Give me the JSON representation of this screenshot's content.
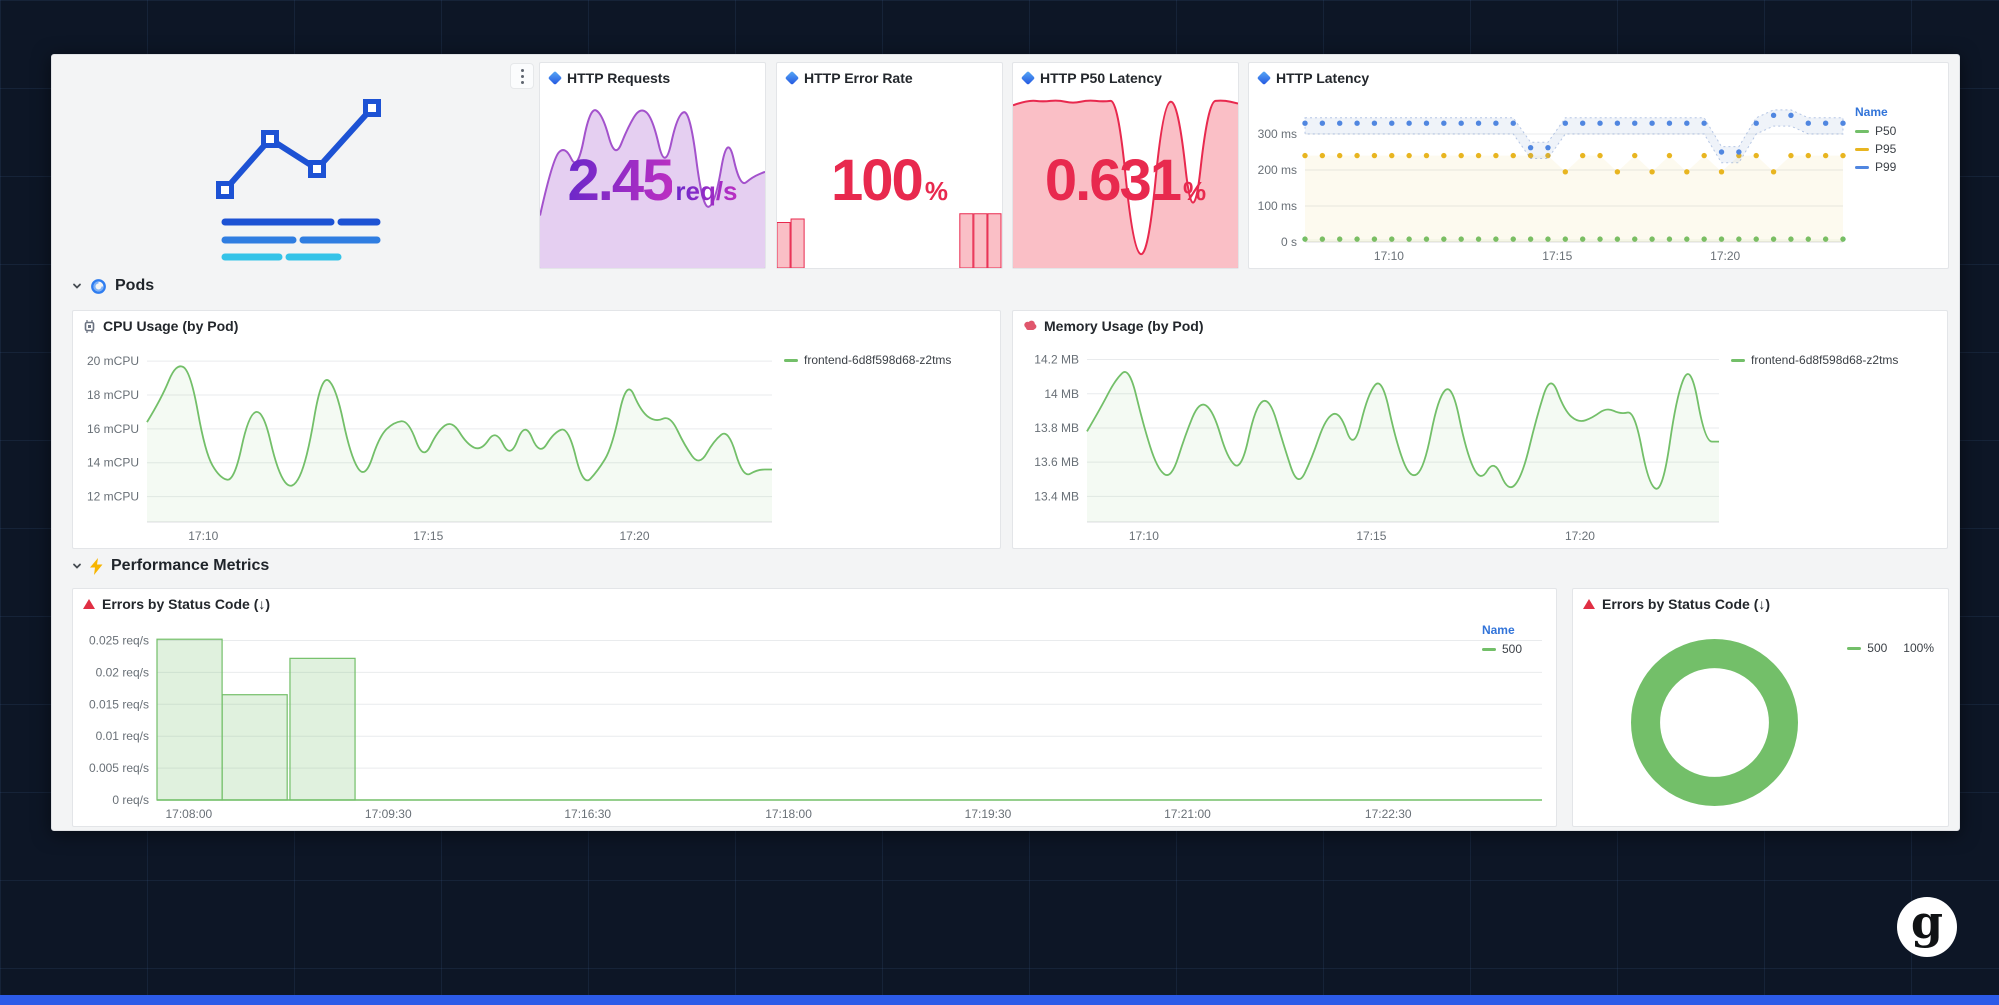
{
  "meta": {
    "logo_letter": "g"
  },
  "sections": {
    "pods": {
      "label": "Pods"
    },
    "performance": {
      "label": "Performance Metrics"
    }
  },
  "panels": {
    "http_requests": {
      "title": "HTTP Requests",
      "value": "2.45",
      "unit": "req/s"
    },
    "http_error_rate": {
      "title": "HTTP Error Rate",
      "value": "100",
      "unit": "%"
    },
    "http_p50_latency": {
      "title": "HTTP P50 Latency",
      "value": "0.631",
      "unit": "%"
    },
    "http_latency": {
      "title": "HTTP Latency"
    },
    "cpu": {
      "title": "CPU Usage (by Pod)"
    },
    "memory": {
      "title": "Memory Usage (by Pod)"
    },
    "errors_bars": {
      "title": "Errors by Status Code (↓)"
    },
    "errors_donut": {
      "title": "Errors by Status Code (↓)"
    }
  },
  "colors": {
    "green": "#73bf69",
    "yellow": "#e8b520",
    "blue": "#5086e0",
    "red": "#e8294e",
    "purple": "#a352cc",
    "legend_title_blue": "#3274d9",
    "accent_bar": "#2c5be8"
  },
  "chart_data": [
    {
      "id": "http-requests-spark",
      "type": "area-spark",
      "title": "HTTP Requests sparkline",
      "color": "#a352cc",
      "fill": "rgba(163,82,204,0.28)",
      "ylim": [
        0,
        1
      ],
      "values": [
        0.3,
        0.62,
        0.7,
        0.55,
        0.92,
        0.88,
        0.62,
        0.8,
        0.92,
        0.86,
        0.55,
        0.88,
        0.9,
        0.34,
        0.36,
        0.78,
        0.46,
        0.52,
        0.55
      ]
    },
    {
      "id": "http-error-spark",
      "type": "bar-spark",
      "title": "HTTP Error Rate sparkline",
      "color": "#e8294e",
      "fill": "rgba(242,73,92,0.35)",
      "ylim": [
        0,
        1
      ],
      "values": [
        0.26,
        0.28,
        0,
        0,
        0,
        0,
        0,
        0,
        0,
        0,
        0,
        0,
        0,
        0.31,
        0.31,
        0.31
      ]
    },
    {
      "id": "http-p50-spark",
      "type": "area-spark",
      "title": "HTTP P50 Latency sparkline",
      "color": "#e8294e",
      "fill": "rgba(242,73,92,0.35)",
      "ylim": [
        0,
        1
      ],
      "values": [
        0.93,
        0.96,
        0.95,
        0.96,
        0.94,
        0.96,
        0.95,
        0.96,
        0.1,
        0.06,
        0.94,
        0.96,
        0.18,
        0.95,
        0.96,
        0.94
      ]
    },
    {
      "id": "http-latency",
      "type": "latency-scatter",
      "title": "HTTP Latency",
      "legend_title": "Name",
      "ylim": [
        0,
        375
      ],
      "ml": 56,
      "mt": 14,
      "mb": 26,
      "mr": 10,
      "yticks": [
        {
          "v": 0,
          "label": "0 s"
        },
        {
          "v": 100,
          "label": "100 ms"
        },
        {
          "v": 200,
          "label": "200 ms"
        },
        {
          "v": 300,
          "label": "300 ms"
        }
      ],
      "xticks": [
        {
          "f": 0.156,
          "label": "17:10"
        },
        {
          "f": 0.469,
          "label": "17:15"
        },
        {
          "f": 0.781,
          "label": "17:20"
        }
      ],
      "series": [
        {
          "name": "P50",
          "color": "#73bf69",
          "areafill": "rgba(115,191,105,0.06)",
          "values": [
            8,
            8,
            8,
            8,
            8,
            8,
            8,
            8,
            8,
            8,
            8,
            8,
            8,
            8,
            8,
            8,
            8,
            8,
            8,
            8,
            8,
            8,
            8,
            8,
            8,
            8,
            8,
            8,
            8,
            8,
            8,
            8
          ]
        },
        {
          "name": "P95",
          "color": "#e8b520",
          "areafill": "rgba(232,181,32,0.07)",
          "values": [
            240,
            240,
            240,
            240,
            240,
            240,
            240,
            240,
            240,
            240,
            240,
            240,
            240,
            240,
            240,
            195,
            240,
            240,
            195,
            240,
            195,
            240,
            195,
            240,
            195,
            240,
            240,
            195,
            240,
            240,
            240,
            240
          ]
        },
        {
          "name": "P99",
          "color": "#5086e0",
          "band": true,
          "values": [
            330,
            330,
            330,
            330,
            330,
            330,
            330,
            330,
            330,
            330,
            330,
            330,
            330,
            262,
            262,
            330,
            330,
            330,
            330,
            330,
            330,
            330,
            330,
            330,
            250,
            250,
            330,
            352,
            352,
            330,
            330,
            330
          ]
        }
      ]
    },
    {
      "id": "cpu-usage",
      "type": "line",
      "title": "CPU Usage (by Pod)",
      "ylim": [
        10.5,
        20.6
      ],
      "ml": 74,
      "mt": 10,
      "mb": 26,
      "mr": 10,
      "yticks": [
        {
          "v": 12,
          "label": "12 mCPU"
        },
        {
          "v": 14,
          "label": "14 mCPU"
        },
        {
          "v": 16,
          "label": "16 mCPU"
        },
        {
          "v": 18,
          "label": "18 mCPU"
        },
        {
          "v": 20,
          "label": "20 mCPU"
        }
      ],
      "xticks": [
        {
          "f": 0.09,
          "label": "17:10"
        },
        {
          "f": 0.45,
          "label": "17:15"
        },
        {
          "f": 0.78,
          "label": "17:20"
        }
      ],
      "series": [
        {
          "name": "frontend-6d8f598d68-z2tms",
          "color": "#73bf69",
          "fill": "rgba(115,191,105,0.08)",
          "values": [
            16.4,
            17.8,
            19.9,
            19.4,
            14.6,
            13.1,
            12.9,
            16.9,
            17.1,
            13.4,
            12.3,
            14.1,
            19.2,
            18.5,
            14.4,
            13.0,
            15.6,
            16.4,
            16.5,
            14.1,
            15.9,
            16.5,
            15.1,
            14.7,
            16.0,
            14.2,
            16.5,
            14.4,
            15.8,
            16.1,
            12.6,
            13.5,
            14.9,
            19.0,
            17.0,
            16.4,
            16.8,
            15.0,
            13.8,
            15.3,
            16.0,
            13.1,
            13.6,
            13.6
          ]
        }
      ]
    },
    {
      "id": "memory-usage",
      "type": "line",
      "title": "Memory Usage (by Pod)",
      "ylim": [
        13.25,
        14.25
      ],
      "ml": 74,
      "mt": 10,
      "mb": 26,
      "mr": 10,
      "yticks": [
        {
          "v": 13.4,
          "label": "13.4 MB"
        },
        {
          "v": 13.6,
          "label": "13.6 MB"
        },
        {
          "v": 13.8,
          "label": "13.8 MB"
        },
        {
          "v": 14,
          "label": "14 MB"
        },
        {
          "v": 14.2,
          "label": "14.2 MB"
        }
      ],
      "xticks": [
        {
          "f": 0.09,
          "label": "17:10"
        },
        {
          "f": 0.45,
          "label": "17:15"
        },
        {
          "f": 0.78,
          "label": "17:20"
        }
      ],
      "series": [
        {
          "name": "frontend-6d8f598d68-z2tms",
          "color": "#73bf69",
          "fill": "rgba(115,191,105,0.08)",
          "values": [
            13.78,
            13.92,
            14.08,
            14.16,
            13.82,
            13.56,
            13.5,
            13.76,
            13.96,
            13.9,
            13.62,
            13.55,
            13.93,
            13.98,
            13.7,
            13.45,
            13.62,
            13.86,
            13.9,
            13.66,
            14.0,
            14.1,
            13.72,
            13.5,
            13.56,
            13.98,
            14.06,
            13.66,
            13.48,
            13.62,
            13.42,
            13.52,
            13.86,
            14.12,
            13.9,
            13.83,
            13.86,
            13.92,
            13.88,
            13.9,
            13.46,
            13.43,
            14.0,
            14.18,
            13.72,
            13.72
          ]
        }
      ]
    },
    {
      "id": "errors-bars",
      "type": "bars",
      "title": "Errors by Status Code (↓)",
      "legend_title": "Name",
      "ylim": [
        0,
        0.0268
      ],
      "ml": 84,
      "mt": 10,
      "mb": 26,
      "mr": 14,
      "yticks": [
        {
          "v": 0,
          "label": "0 req/s"
        },
        {
          "v": 0.005,
          "label": "0.005 req/s"
        },
        {
          "v": 0.01,
          "label": "0.01 req/s"
        },
        {
          "v": 0.015,
          "label": "0.015 req/s"
        },
        {
          "v": 0.02,
          "label": "0.02 req/s"
        },
        {
          "v": 0.025,
          "label": "0.025 req/s"
        }
      ],
      "xticks": [
        {
          "f": 0.023,
          "label": "17:08:00"
        },
        {
          "f": 0.167,
          "label": "17:09:30"
        },
        {
          "f": 0.311,
          "label": "17:16:30"
        },
        {
          "f": 0.456,
          "label": "17:18:00"
        },
        {
          "f": 0.6,
          "label": "17:19:30"
        },
        {
          "f": 0.744,
          "label": "17:21:00"
        },
        {
          "f": 0.889,
          "label": "17:22:30"
        }
      ],
      "series": [
        {
          "name": "500",
          "color": "#73bf69",
          "fill": "rgba(115,191,105,0.22)"
        }
      ],
      "bars": [
        {
          "x": 0.0,
          "w": 0.047,
          "v": 0.0252
        },
        {
          "x": 0.047,
          "w": 0.047,
          "v": 0.0165
        },
        {
          "x": 0.096,
          "w": 0.047,
          "v": 0.0222
        }
      ],
      "baseline": true
    },
    {
      "id": "errors-donut",
      "type": "donut",
      "title": "Errors by Status Code (↓)",
      "slices": [
        {
          "label": "500",
          "value": "100%",
          "pct": 100,
          "color": "#73bf69"
        }
      ]
    }
  ]
}
